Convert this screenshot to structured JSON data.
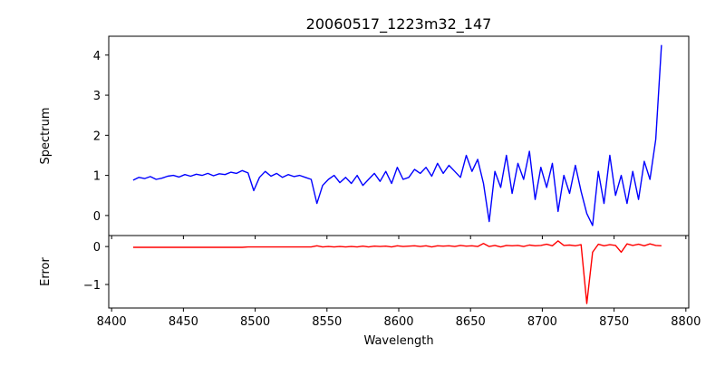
{
  "chart_data": [
    {
      "type": "line",
      "panel": "top",
      "title": "20060517_1223m32_147",
      "ylabel": "Spectrum",
      "xlabel": "",
      "xlim": [
        8398,
        8802
      ],
      "ylim": [
        -0.5,
        4.47
      ],
      "xticks": [
        8400,
        8450,
        8500,
        8550,
        8600,
        8650,
        8700,
        8750,
        8800
      ],
      "yticks": [
        0,
        1,
        2,
        3,
        4
      ],
      "series": [
        {
          "name": "Spectrum",
          "color": "#0000ff",
          "x_start": 8415,
          "x_step": 4,
          "values": [
            0.88,
            0.95,
            0.92,
            0.97,
            0.9,
            0.93,
            0.98,
            1.0,
            0.96,
            1.02,
            0.98,
            1.03,
            1.0,
            1.05,
            0.99,
            1.04,
            1.02,
            1.08,
            1.05,
            1.12,
            1.06,
            0.62,
            0.95,
            1.1,
            0.98,
            1.05,
            0.95,
            1.02,
            0.97,
            1.0,
            0.95,
            0.9,
            0.3,
            0.75,
            0.9,
            1.0,
            0.82,
            0.95,
            0.8,
            1.0,
            0.75,
            0.9,
            1.05,
            0.85,
            1.1,
            0.8,
            1.2,
            0.9,
            0.95,
            1.15,
            1.05,
            1.2,
            0.98,
            1.3,
            1.05,
            1.25,
            1.1,
            0.95,
            1.5,
            1.1,
            1.4,
            0.8,
            -0.15,
            1.1,
            0.7,
            1.5,
            0.55,
            1.3,
            0.9,
            1.6,
            0.4,
            1.2,
            0.7,
            1.3,
            0.1,
            1.0,
            0.55,
            1.25,
            0.6,
            0.05,
            -0.25,
            1.1,
            0.3,
            1.5,
            0.5,
            1.0,
            0.3,
            1.1,
            0.4,
            1.35,
            0.9,
            1.9,
            4.25
          ]
        }
      ]
    },
    {
      "type": "line",
      "panel": "bottom",
      "title": "",
      "ylabel": "Error",
      "xlabel": "Wavelength",
      "xlim": [
        8398,
        8802
      ],
      "ylim": [
        -1.62,
        0.29
      ],
      "xticks": [
        8400,
        8450,
        8500,
        8550,
        8600,
        8650,
        8700,
        8750,
        8800
      ],
      "yticks": [
        0,
        -1
      ],
      "ytick_labels": [
        "0",
        "−1"
      ],
      "series": [
        {
          "name": "Error",
          "color": "#ff0000",
          "x_start": 8415,
          "x_step": 4,
          "values": [
            -0.02,
            -0.02,
            -0.02,
            -0.02,
            -0.02,
            -0.02,
            -0.02,
            -0.02,
            -0.02,
            -0.02,
            -0.02,
            -0.02,
            -0.02,
            -0.02,
            -0.02,
            -0.02,
            -0.02,
            -0.02,
            -0.02,
            -0.02,
            -0.01,
            -0.01,
            -0.01,
            -0.01,
            -0.01,
            -0.01,
            -0.01,
            -0.01,
            -0.01,
            -0.01,
            -0.01,
            -0.01,
            0.02,
            -0.01,
            0.0,
            -0.01,
            0.0,
            -0.01,
            0.0,
            -0.01,
            0.01,
            -0.01,
            0.01,
            0.0,
            0.01,
            -0.01,
            0.02,
            0.0,
            0.01,
            0.02,
            0.0,
            0.02,
            -0.01,
            0.02,
            0.01,
            0.02,
            0.0,
            0.03,
            0.01,
            0.02,
            0.0,
            0.08,
            0.0,
            0.03,
            -0.01,
            0.03,
            0.02,
            0.03,
            0.0,
            0.04,
            0.02,
            0.03,
            0.06,
            0.02,
            0.15,
            0.03,
            0.04,
            0.02,
            0.05,
            -1.5,
            -0.15,
            0.06,
            0.02,
            0.05,
            0.03,
            -0.15,
            0.07,
            0.03,
            0.06,
            0.02,
            0.07,
            0.03,
            0.02
          ]
        }
      ]
    }
  ]
}
